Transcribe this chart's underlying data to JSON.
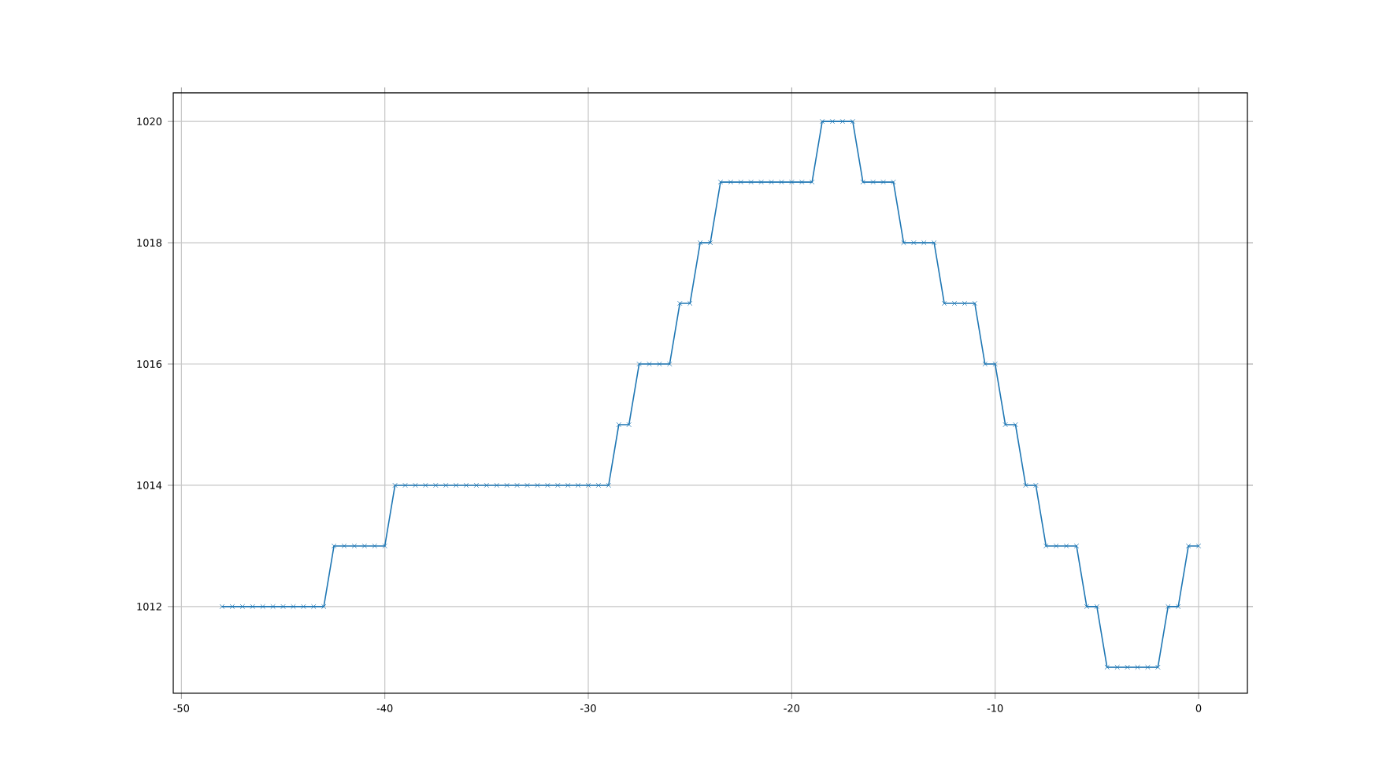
{
  "chart_data": {
    "type": "line",
    "color": "#1f77b4",
    "marker": "cross",
    "grid": true,
    "x": [
      -48,
      -47.5,
      -47,
      -46.5,
      -46,
      -45.5,
      -45,
      -44.5,
      -44,
      -43.5,
      -43,
      -42.5,
      -42,
      -41.5,
      -41,
      -40.5,
      -40,
      -39.5,
      -39,
      -38.5,
      -38,
      -37.5,
      -37,
      -36.5,
      -36,
      -35.5,
      -35,
      -34.5,
      -34,
      -33.5,
      -33,
      -32.5,
      -32,
      -31.5,
      -31,
      -30.5,
      -30,
      -29.5,
      -29,
      -28.5,
      -28,
      -27.5,
      -27,
      -26.5,
      -26,
      -25.5,
      -25,
      -24.5,
      -24,
      -23.5,
      -23,
      -22.5,
      -22,
      -21.5,
      -21,
      -20.5,
      -20,
      -19.5,
      -19,
      -18.5,
      -18,
      -17.5,
      -17,
      -16.5,
      -16,
      -15.5,
      -15,
      -14.5,
      -14,
      -13.5,
      -13,
      -12.5,
      -12,
      -11.5,
      -11,
      -10.5,
      -10,
      -9.5,
      -9,
      -8.5,
      -8,
      -7.5,
      -7,
      -6.5,
      -6,
      -5.5,
      -5,
      -4.5,
      -4,
      -3.5,
      -3,
      -2.5,
      -2,
      -1.5,
      -1,
      -0.5,
      0
    ],
    "values": [
      1012,
      1012,
      1012,
      1012,
      1012,
      1012,
      1012,
      1012,
      1012,
      1012,
      1012,
      1013,
      1013,
      1013,
      1013,
      1013,
      1013,
      1014,
      1014,
      1014,
      1014,
      1014,
      1014,
      1014,
      1014,
      1014,
      1014,
      1014,
      1014,
      1014,
      1014,
      1014,
      1014,
      1014,
      1014,
      1014,
      1014,
      1014,
      1014,
      1015,
      1015,
      1016,
      1016,
      1016,
      1016,
      1017,
      1017,
      1018,
      1018,
      1019,
      1019,
      1019,
      1019,
      1019,
      1019,
      1019,
      1019,
      1019,
      1019,
      1020,
      1020,
      1020,
      1020,
      1019,
      1019,
      1019,
      1019,
      1018,
      1018,
      1018,
      1018,
      1017,
      1017,
      1017,
      1017,
      1016,
      1016,
      1015,
      1015,
      1014,
      1014,
      1013,
      1013,
      1013,
      1013,
      1012,
      1012,
      1011,
      1011,
      1011,
      1011,
      1011,
      1011,
      1012,
      1012,
      1013,
      1013
    ],
    "xlim": [
      -50.4,
      2.4
    ],
    "ylim": [
      1010.57,
      1020.47
    ],
    "xticks": [
      -50,
      -40,
      -30,
      -20,
      -10,
      0
    ],
    "yticks": [
      1012,
      1014,
      1016,
      1018,
      1020
    ]
  }
}
